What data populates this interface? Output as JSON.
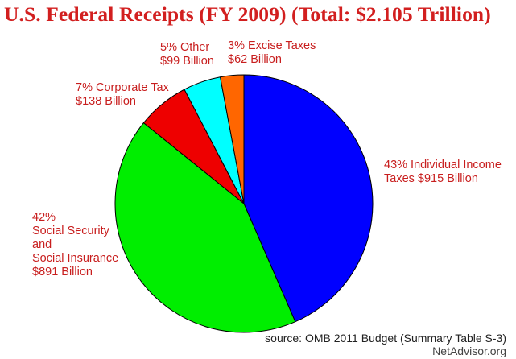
{
  "chart_data": {
    "type": "pie",
    "title": "U.S. Federal Receipts (FY 2009) (Total: $2.105 Trillion)",
    "slices": [
      {
        "label": "Individual Income Taxes",
        "percent_text": "43%",
        "value_text": "$915 Billion",
        "value": 915,
        "color": "#0000ff"
      },
      {
        "label": "Social Security and Social Insurance",
        "percent_text": "42%",
        "value_text": "$891 Billion",
        "value": 891,
        "color": "#00ee00"
      },
      {
        "label": "Corporate Tax",
        "percent_text": "7%",
        "value_text": "$138 Billion",
        "value": 138,
        "color": "#ee0000"
      },
      {
        "label": "Other",
        "percent_text": "5%",
        "value_text": "$99 Billion",
        "value": 99,
        "color": "#00ffff"
      },
      {
        "label": "Excise Taxes",
        "percent_text": "3%",
        "value_text": "$62 Billion",
        "value": 62,
        "color": "#ff6600"
      }
    ]
  },
  "labels": {
    "individual_line1": "43% Individual Income",
    "individual_line2": "Taxes $915 Billion",
    "social_line1": "42%",
    "social_line2": "Social Security",
    "social_line3": "and",
    "social_line4": "Social Insurance",
    "social_line5": "$891 Billion",
    "corporate_line1": "7% Corporate Tax",
    "corporate_line2": "$138 Billion",
    "other_line1": "5% Other",
    "other_line2": "$99 Billion",
    "excise_line1": "3% Excise Taxes",
    "excise_line2": "$62 Billion"
  },
  "footer": {
    "source": "source: OMB 2011 Budget (Summary Table S-3)",
    "brand": "NetAdvisor.org"
  }
}
